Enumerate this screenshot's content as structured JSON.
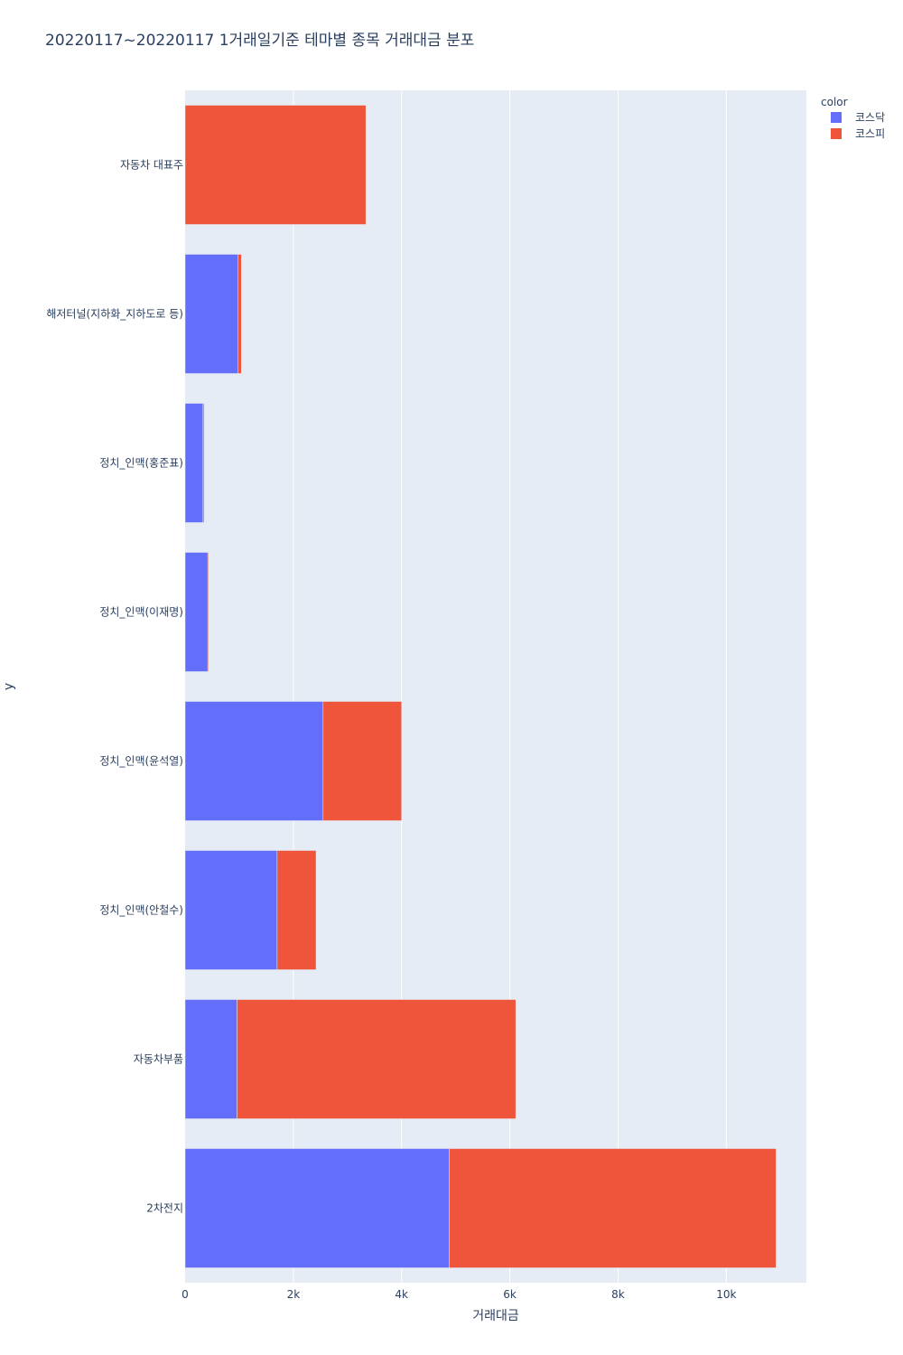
{
  "chart_data": {
    "type": "bar",
    "orientation": "horizontal",
    "barmode": "stack",
    "title": "20220117~20220117 1거래일기준 테마별 종목 거래대금 분포",
    "xlabel": "거래대금",
    "ylabel": "y",
    "xlim": [
      0,
      11480
    ],
    "x_ticks": [
      0,
      2000,
      4000,
      6000,
      8000,
      10000
    ],
    "x_tick_labels": [
      "0",
      "2k",
      "4k",
      "6k",
      "8k",
      "10k"
    ],
    "grid": true,
    "legend": {
      "title": "color",
      "placement": "top-right"
    },
    "categories": [
      "자동차 대표주",
      "해저터널(지하화_지하도로 등)",
      "정치_인맥(홍준표)",
      "정치_인맥(이재명)",
      "정치_인맥(윤석열)",
      "정치_인맥(안철수)",
      "자동차부품",
      "2차전지"
    ],
    "series": [
      {
        "name": "코스닥",
        "color": "#636efa",
        "values": [
          0,
          980,
          330,
          420,
          2550,
          1700,
          960,
          4880
        ]
      },
      {
        "name": "코스피",
        "color": "#ef553b",
        "values": [
          3340,
          60,
          20,
          15,
          1450,
          720,
          5150,
          6040
        ]
      }
    ],
    "plot_background": "#e5ecf6"
  }
}
